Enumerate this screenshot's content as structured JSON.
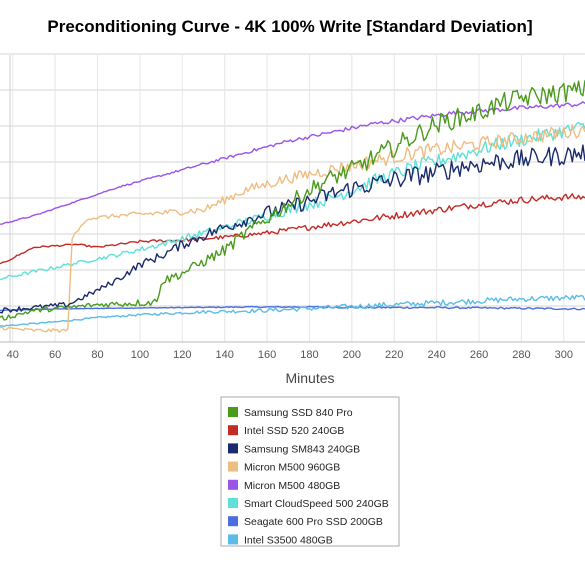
{
  "chart_data": {
    "type": "line",
    "title": "Preconditioning Curve - 4K 100% Write [Standard Deviation]",
    "xlabel": "Minutes",
    "ylabel": "",
    "xlim": [
      34,
      310
    ],
    "ylim": [
      0,
      10
    ],
    "x_ticks": [
      40,
      60,
      80,
      100,
      120,
      140,
      160,
      180,
      200,
      220,
      240,
      260,
      280,
      300
    ],
    "grid": true,
    "legend_position": "bottom-center",
    "series": [
      {
        "name": "Samsung SSD 840 Pro",
        "color": "#4a9a1c",
        "x": [
          34,
          50,
          66,
          80,
          96,
          108,
          110,
          120,
          130,
          140,
          150,
          160,
          170,
          180,
          190,
          200,
          210,
          220,
          230,
          240,
          250,
          260,
          270,
          280,
          290,
          300,
          310
        ],
        "y": [
          0.8,
          1.1,
          1.2,
          1.3,
          1.35,
          1.4,
          2.1,
          2.4,
          2.8,
          3.2,
          3.8,
          4.3,
          4.8,
          5.3,
          5.7,
          6.0,
          6.4,
          6.8,
          7.2,
          7.6,
          7.8,
          8.0,
          8.3,
          8.5,
          8.6,
          8.7,
          8.8
        ]
      },
      {
        "name": "Intel SSD 520 240GB",
        "color": "#c22b26",
        "x": [
          34,
          50,
          70,
          80,
          100,
          120,
          140,
          160,
          180,
          200,
          220,
          240,
          260,
          280,
          300,
          310
        ],
        "y": [
          2.7,
          3.3,
          3.4,
          3.3,
          3.5,
          3.55,
          3.65,
          3.8,
          4.0,
          4.2,
          4.4,
          4.6,
          4.8,
          4.95,
          5.05,
          5.05
        ]
      },
      {
        "name": "Samsung SM843 240GB",
        "color": "#1a2a6c",
        "x": [
          34,
          50,
          66,
          80,
          90,
          100,
          110,
          120,
          130,
          140,
          150,
          160,
          170,
          180,
          190,
          200,
          210,
          220,
          230,
          240,
          250,
          260,
          270,
          280,
          290,
          300,
          310
        ],
        "y": [
          1.1,
          1.2,
          1.3,
          1.8,
          2.2,
          2.7,
          3.0,
          3.4,
          3.7,
          4.0,
          4.25,
          4.5,
          4.7,
          4.9,
          5.15,
          5.35,
          5.5,
          5.65,
          5.8,
          5.9,
          6.1,
          6.2,
          6.3,
          6.35,
          6.45,
          6.5,
          6.6
        ]
      },
      {
        "name": "Micron M500 960GB",
        "color": "#eebd82",
        "x": [
          34,
          50,
          66,
          68,
          75,
          90,
          110,
          130,
          150,
          170,
          190,
          210,
          230,
          250,
          270,
          290,
          310
        ],
        "y": [
          0.5,
          0.4,
          0.4,
          3.6,
          4.3,
          4.4,
          4.5,
          4.6,
          5.3,
          5.7,
          6.0,
          6.3,
          6.6,
          6.8,
          7.0,
          7.2,
          7.4
        ]
      },
      {
        "name": "Micron M500 480GB",
        "color": "#9a54e6",
        "x": [
          34,
          50,
          70,
          90,
          110,
          130,
          150,
          170,
          190,
          210,
          230,
          250,
          270,
          290,
          310
        ],
        "y": [
          4.1,
          4.4,
          4.9,
          5.4,
          5.8,
          6.2,
          6.6,
          7.0,
          7.3,
          7.6,
          7.8,
          8.0,
          8.1,
          8.2,
          8.3
        ]
      },
      {
        "name": "Smart CloudSpeed 500 240GB",
        "color": "#5fe0d8",
        "x": [
          34,
          50,
          70,
          90,
          110,
          130,
          150,
          170,
          190,
          210,
          230,
          250,
          270,
          290,
          310
        ],
        "y": [
          2.2,
          2.45,
          2.75,
          3.05,
          3.4,
          3.8,
          4.2,
          4.6,
          5.0,
          5.6,
          6.1,
          6.5,
          6.9,
          7.2,
          7.5
        ]
      },
      {
        "name": "Seagate 600 Pro SSD 200GB",
        "color": "#4a6ee0",
        "x": [
          34,
          60,
          90,
          120,
          150,
          180,
          210,
          240,
          270,
          310
        ],
        "y": [
          1.1,
          1.15,
          1.18,
          1.2,
          1.22,
          1.22,
          1.2,
          1.2,
          1.18,
          1.15
        ]
      },
      {
        "name": "Intel S3500 480GB",
        "color": "#5bbce8",
        "x": [
          34,
          60,
          80,
          100,
          130,
          160,
          190,
          220,
          250,
          280,
          310
        ],
        "y": [
          0.55,
          0.7,
          0.85,
          0.95,
          1.05,
          1.1,
          1.2,
          1.3,
          1.4,
          1.5,
          1.55
        ]
      }
    ]
  }
}
